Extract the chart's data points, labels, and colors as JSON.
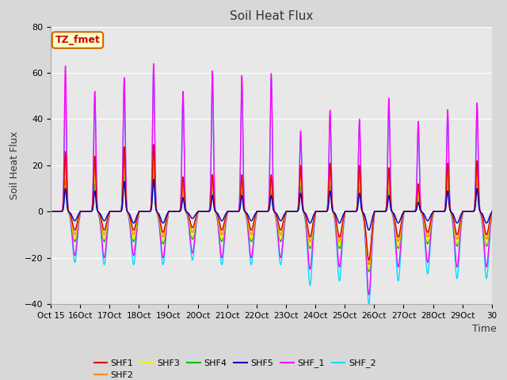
{
  "title": "Soil Heat Flux",
  "ylabel": "Soil Heat Flux",
  "xlabel": "Time",
  "ylim": [
    -40,
    80
  ],
  "xlim": [
    0,
    15
  ],
  "annotation_text": "TZ_fmet",
  "annotation_bg": "#ffffcc",
  "annotation_border": "#cc6600",
  "annotation_text_color": "#cc0000",
  "series": {
    "SHF1": {
      "color": "#dd0000"
    },
    "SHF2": {
      "color": "#ff8800"
    },
    "SHF3": {
      "color": "#eeee00"
    },
    "SHF4": {
      "color": "#00bb00"
    },
    "SHF5": {
      "color": "#0000bb"
    },
    "SHF_1": {
      "color": "#ff00ff"
    },
    "SHF_2": {
      "color": "#00ddff"
    }
  },
  "fig_bg": "#d8d8d8",
  "plot_bg": "#e8e8e8",
  "grid_color": "#ffffff",
  "n_days": 15,
  "start_day": 15,
  "tick_labels": [
    "Oct 15",
    "16Oct",
    "17Oct",
    "18Oct",
    "19Oct",
    "20Oct",
    "21Oct",
    "22Oct",
    "23Oct",
    "24Oct",
    "25Oct",
    "26Oct",
    "27Oct",
    "28Oct",
    "29Oct",
    "30"
  ],
  "shf1_peaks": [
    26,
    24,
    28,
    29,
    15,
    16,
    16,
    16,
    20,
    21,
    20,
    19,
    12,
    21,
    22
  ],
  "shf1_troughs": [
    -8,
    -8,
    -8,
    -9,
    -7,
    -8,
    -8,
    -8,
    -11,
    -11,
    -21,
    -11,
    -9,
    -10,
    -10
  ],
  "shf2_peaks": [
    22,
    20,
    24,
    26,
    12,
    13,
    13,
    13,
    17,
    18,
    17,
    16,
    10,
    18,
    19
  ],
  "shf2_troughs": [
    -10,
    -10,
    -10,
    -11,
    -9,
    -10,
    -10,
    -10,
    -13,
    -13,
    -23,
    -13,
    -11,
    -12,
    -12
  ],
  "shf3_peaks": [
    18,
    16,
    20,
    22,
    10,
    11,
    11,
    11,
    14,
    15,
    14,
    13,
    8,
    15,
    16
  ],
  "shf3_troughs": [
    -12,
    -12,
    -12,
    -13,
    -11,
    -12,
    -12,
    -12,
    -15,
    -15,
    -25,
    -15,
    -13,
    -14,
    -14
  ],
  "shf4_peaks": [
    14,
    12,
    17,
    18,
    8,
    9,
    9,
    9,
    11,
    12,
    11,
    10,
    6,
    12,
    13
  ],
  "shf4_troughs": [
    -13,
    -13,
    -13,
    -14,
    -12,
    -13,
    -13,
    -13,
    -16,
    -16,
    -26,
    -16,
    -14,
    -15,
    -15
  ],
  "shf5_peaks": [
    10,
    9,
    13,
    14,
    6,
    7,
    7,
    7,
    8,
    9,
    8,
    7,
    4,
    9,
    10
  ],
  "shf5_troughs": [
    -4,
    -4,
    -5,
    -5,
    -3,
    -4,
    -4,
    -4,
    -5,
    -5,
    -8,
    -5,
    -4,
    -5,
    -5
  ],
  "shf_1_peaks": [
    63,
    52,
    58,
    64,
    52,
    61,
    59,
    60,
    35,
    44,
    40,
    49,
    39,
    44,
    47
  ],
  "shf_1_troughs": [
    -19,
    -20,
    -19,
    -20,
    -18,
    -20,
    -20,
    -20,
    -25,
    -24,
    -36,
    -24,
    -22,
    -24,
    -24
  ],
  "shf_2_peaks": [
    50,
    50,
    56,
    62,
    50,
    58,
    55,
    58,
    32,
    42,
    38,
    47,
    37,
    42,
    45
  ],
  "shf_2_troughs": [
    -22,
    -23,
    -23,
    -23,
    -21,
    -23,
    -23,
    -23,
    -32,
    -30,
    -40,
    -30,
    -27,
    -29,
    -29
  ]
}
